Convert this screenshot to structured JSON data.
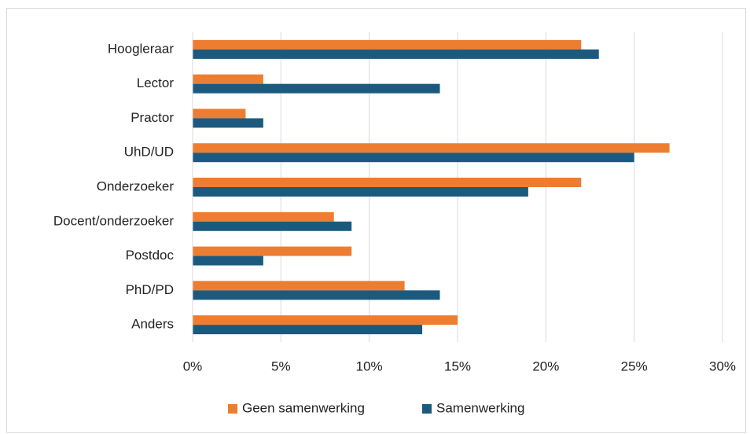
{
  "chart_data": {
    "type": "bar",
    "orientation": "horizontal",
    "categories": [
      "Hoogleraar",
      "Lector",
      "Practor",
      "UhD/UD",
      "Onderzoeker",
      "Docent/onderzoeker",
      "Postdoc",
      "PhD/PD",
      "Anders"
    ],
    "series": [
      {
        "name": "Geen samenwerking",
        "color": "#ed7d31",
        "values": [
          22,
          4,
          3,
          27,
          22,
          8,
          9,
          12,
          15
        ]
      },
      {
        "name": "Samenwerking",
        "color": "#1b5a7e",
        "values": [
          23,
          14,
          4,
          25,
          19,
          9,
          4,
          14,
          13
        ]
      }
    ],
    "xlim": [
      0,
      30
    ],
    "xticks": [
      {
        "value": 0,
        "label": "0%"
      },
      {
        "value": 5,
        "label": "5%"
      },
      {
        "value": 10,
        "label": "10%"
      },
      {
        "value": 15,
        "label": "15%"
      },
      {
        "value": 20,
        "label": "20%"
      },
      {
        "value": 25,
        "label": "25%"
      },
      {
        "value": 30,
        "label": "30%"
      }
    ],
    "grid": true,
    "legend": "bottom"
  }
}
